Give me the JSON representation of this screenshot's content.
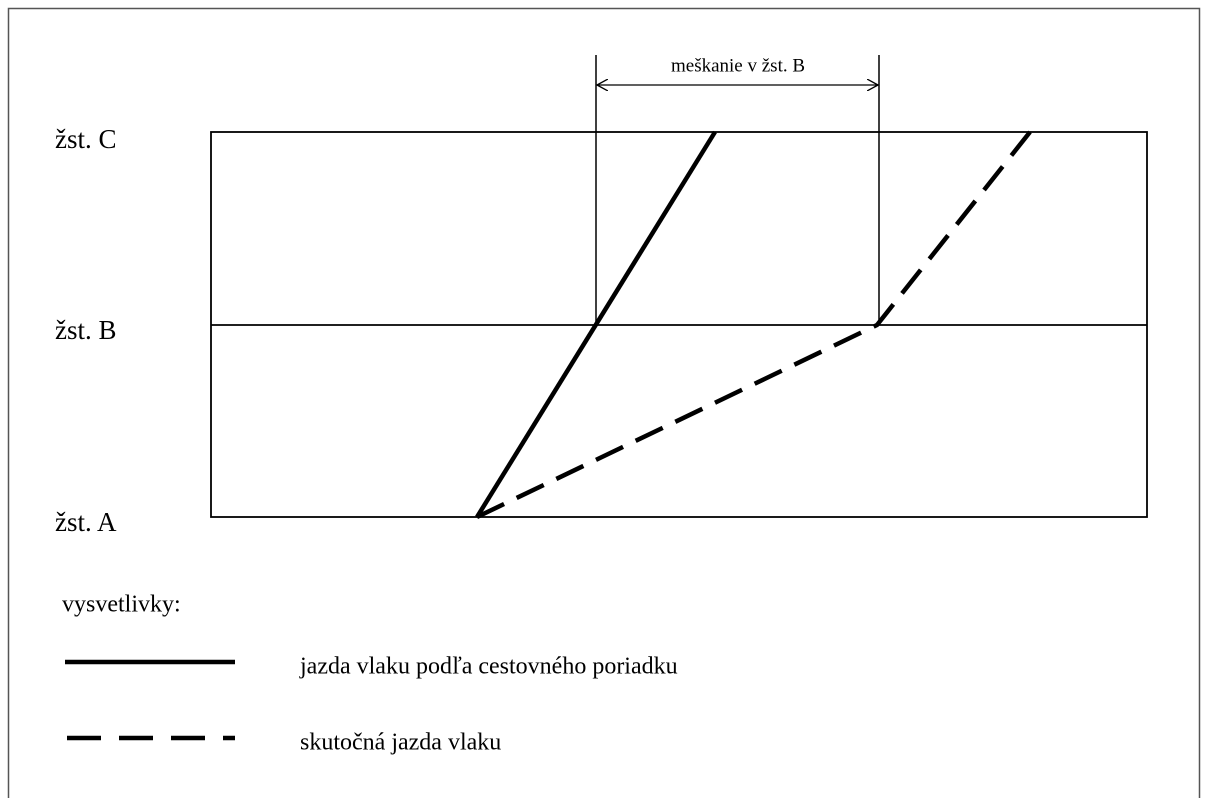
{
  "stations": [
    "žst. C",
    "žst. B",
    "žst. A"
  ],
  "dimension_label": "meškanie v žst. B",
  "legend": {
    "title": "vysvetlivky:",
    "items": [
      "jazda vlaku podľa cestovného poriadku",
      "skutočná jazda vlaku"
    ]
  }
}
